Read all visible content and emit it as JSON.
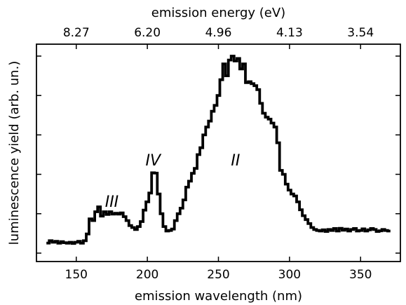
{
  "chart_data": {
    "type": "line",
    "title": "",
    "xlabel": "emission wavelength (nm)",
    "ylabel": "luminescence yield (arb. un.)",
    "secondary_xlabel": "emission energy (eV)",
    "xlim": [
      122,
      378
    ],
    "ylim": [
      0,
      1.0
    ],
    "bottom_ticks": [
      150,
      200,
      250,
      300,
      350
    ],
    "bottom_tick_labels": [
      "150",
      "200",
      "250",
      "300",
      "350"
    ],
    "top_ticks": [
      150,
      200,
      250,
      300,
      350
    ],
    "top_tick_labels": [
      "8.27",
      "6.20",
      "4.96",
      "4.13",
      "3.54"
    ],
    "y_tick_count": 6,
    "y_tick_labels_shown": false,
    "grid": false,
    "legend": "none",
    "line_style": "steps",
    "series": [
      {
        "x": [
          130,
          132,
          134,
          136,
          138,
          140,
          142,
          144,
          146,
          148,
          150,
          152,
          154,
          156,
          158,
          160,
          162,
          164,
          166,
          168,
          170,
          172,
          174,
          176,
          178,
          180,
          182,
          184,
          186,
          188,
          190,
          192,
          194,
          196,
          198,
          200,
          202,
          204,
          206,
          208,
          210,
          212,
          214,
          216,
          218,
          220,
          222,
          224,
          226,
          228,
          230,
          232,
          234,
          236,
          238,
          240,
          242,
          244,
          246,
          248,
          250,
          252,
          254,
          256,
          258,
          260,
          262,
          264,
          266,
          268,
          270,
          272,
          274,
          276,
          278,
          280,
          282,
          284,
          286,
          288,
          290,
          292,
          294,
          296,
          298,
          300,
          302,
          304,
          306,
          308,
          310,
          312,
          314,
          316,
          318,
          320,
          322,
          324,
          326,
          328,
          330,
          332,
          334,
          336,
          338,
          340,
          342,
          344,
          346,
          348,
          350,
          352,
          354,
          356,
          358,
          360,
          362,
          364,
          366,
          368,
          370
        ],
        "y": [
          0.051,
          0.063,
          0.055,
          0.06,
          0.05,
          0.058,
          0.053,
          0.05,
          0.055,
          0.049,
          0.055,
          0.06,
          0.05,
          0.063,
          0.097,
          0.174,
          0.165,
          0.21,
          0.235,
          0.188,
          0.21,
          0.196,
          0.21,
          0.198,
          0.202,
          0.198,
          0.204,
          0.185,
          0.165,
          0.14,
          0.13,
          0.12,
          0.135,
          0.16,
          0.218,
          0.26,
          0.305,
          0.408,
          0.406,
          0.3,
          0.2,
          0.135,
          0.112,
          0.115,
          0.122,
          0.165,
          0.2,
          0.228,
          0.27,
          0.335,
          0.365,
          0.405,
          0.43,
          0.5,
          0.535,
          0.6,
          0.64,
          0.67,
          0.72,
          0.75,
          0.8,
          0.88,
          0.96,
          0.9,
          0.98,
          1.0,
          0.975,
          0.988,
          0.935,
          0.96,
          0.865,
          0.87,
          0.86,
          0.85,
          0.83,
          0.76,
          0.71,
          0.69,
          0.68,
          0.66,
          0.64,
          0.56,
          0.42,
          0.4,
          0.35,
          0.32,
          0.3,
          0.29,
          0.26,
          0.22,
          0.19,
          0.17,
          0.15,
          0.13,
          0.12,
          0.115,
          0.112,
          0.118,
          0.11,
          0.12,
          0.115,
          0.125,
          0.112,
          0.126,
          0.116,
          0.122,
          0.112,
          0.12,
          0.125,
          0.112,
          0.115,
          0.123,
          0.112,
          0.118,
          0.125,
          0.12,
          0.11,
          0.113,
          0.12,
          0.115,
          0.112
        ]
      }
    ],
    "annotations": [
      {
        "text": "III",
        "x": 175,
        "y": 0.235
      },
      {
        "text": "IV",
        "x": 204,
        "y": 0.445
      },
      {
        "text": "II",
        "x": 262,
        "y": 0.445
      }
    ]
  }
}
